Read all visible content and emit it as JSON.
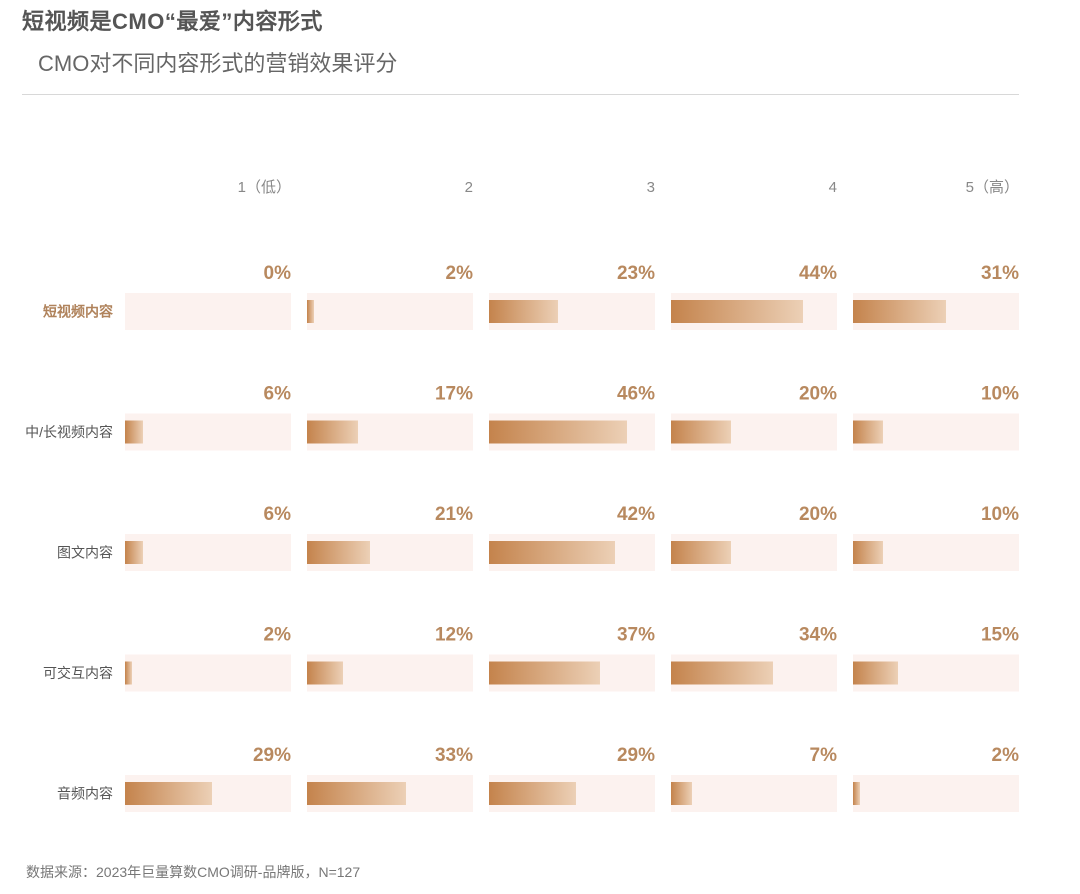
{
  "title": "短视频是CMO“最爱”内容形式",
  "subtitle": "CMO对不同内容形式的营销效果评分",
  "source": "数据来源：2023年巨量算数CMO调研-品牌版，N=127",
  "colors": {
    "track": "#fcf2ef",
    "bar_start": "#c4834c",
    "bar_end": "#ecd0b6",
    "value_label": "#b8895f",
    "row_label": "#555555",
    "row_label_highlight": "#b0835c",
    "column_header": "#888888"
  },
  "chart_data": {
    "type": "bar",
    "title": "CMO对不同内容形式的营销效果评分",
    "columns": [
      "1（低）",
      "2",
      "3",
      "4",
      "5（高）"
    ],
    "unit": "%",
    "xlim": [
      0,
      50
    ],
    "highlighted_row": "短视频内容",
    "rows": [
      {
        "label": "短视频内容",
        "values": [
          0,
          2,
          23,
          44,
          31
        ],
        "labels": [
          "0%",
          "2%",
          "23%",
          "44%",
          "31%"
        ]
      },
      {
        "label": "中/长视频内容",
        "values": [
          6,
          17,
          46,
          20,
          10
        ],
        "labels": [
          "6%",
          "17%",
          "46%",
          "20%",
          "10%"
        ]
      },
      {
        "label": "图文内容",
        "values": [
          6,
          21,
          42,
          20,
          10
        ],
        "labels": [
          "6%",
          "21%",
          "42%",
          "20%",
          "10%"
        ]
      },
      {
        "label": "可交互内容",
        "values": [
          2,
          12,
          37,
          34,
          15
        ],
        "labels": [
          "2%",
          "12%",
          "37%",
          "34%",
          "15%"
        ]
      },
      {
        "label": "音频内容",
        "values": [
          29,
          33,
          29,
          7,
          2
        ],
        "labels": [
          "29%",
          "33%",
          "29%",
          "7%",
          "2%"
        ]
      }
    ]
  }
}
